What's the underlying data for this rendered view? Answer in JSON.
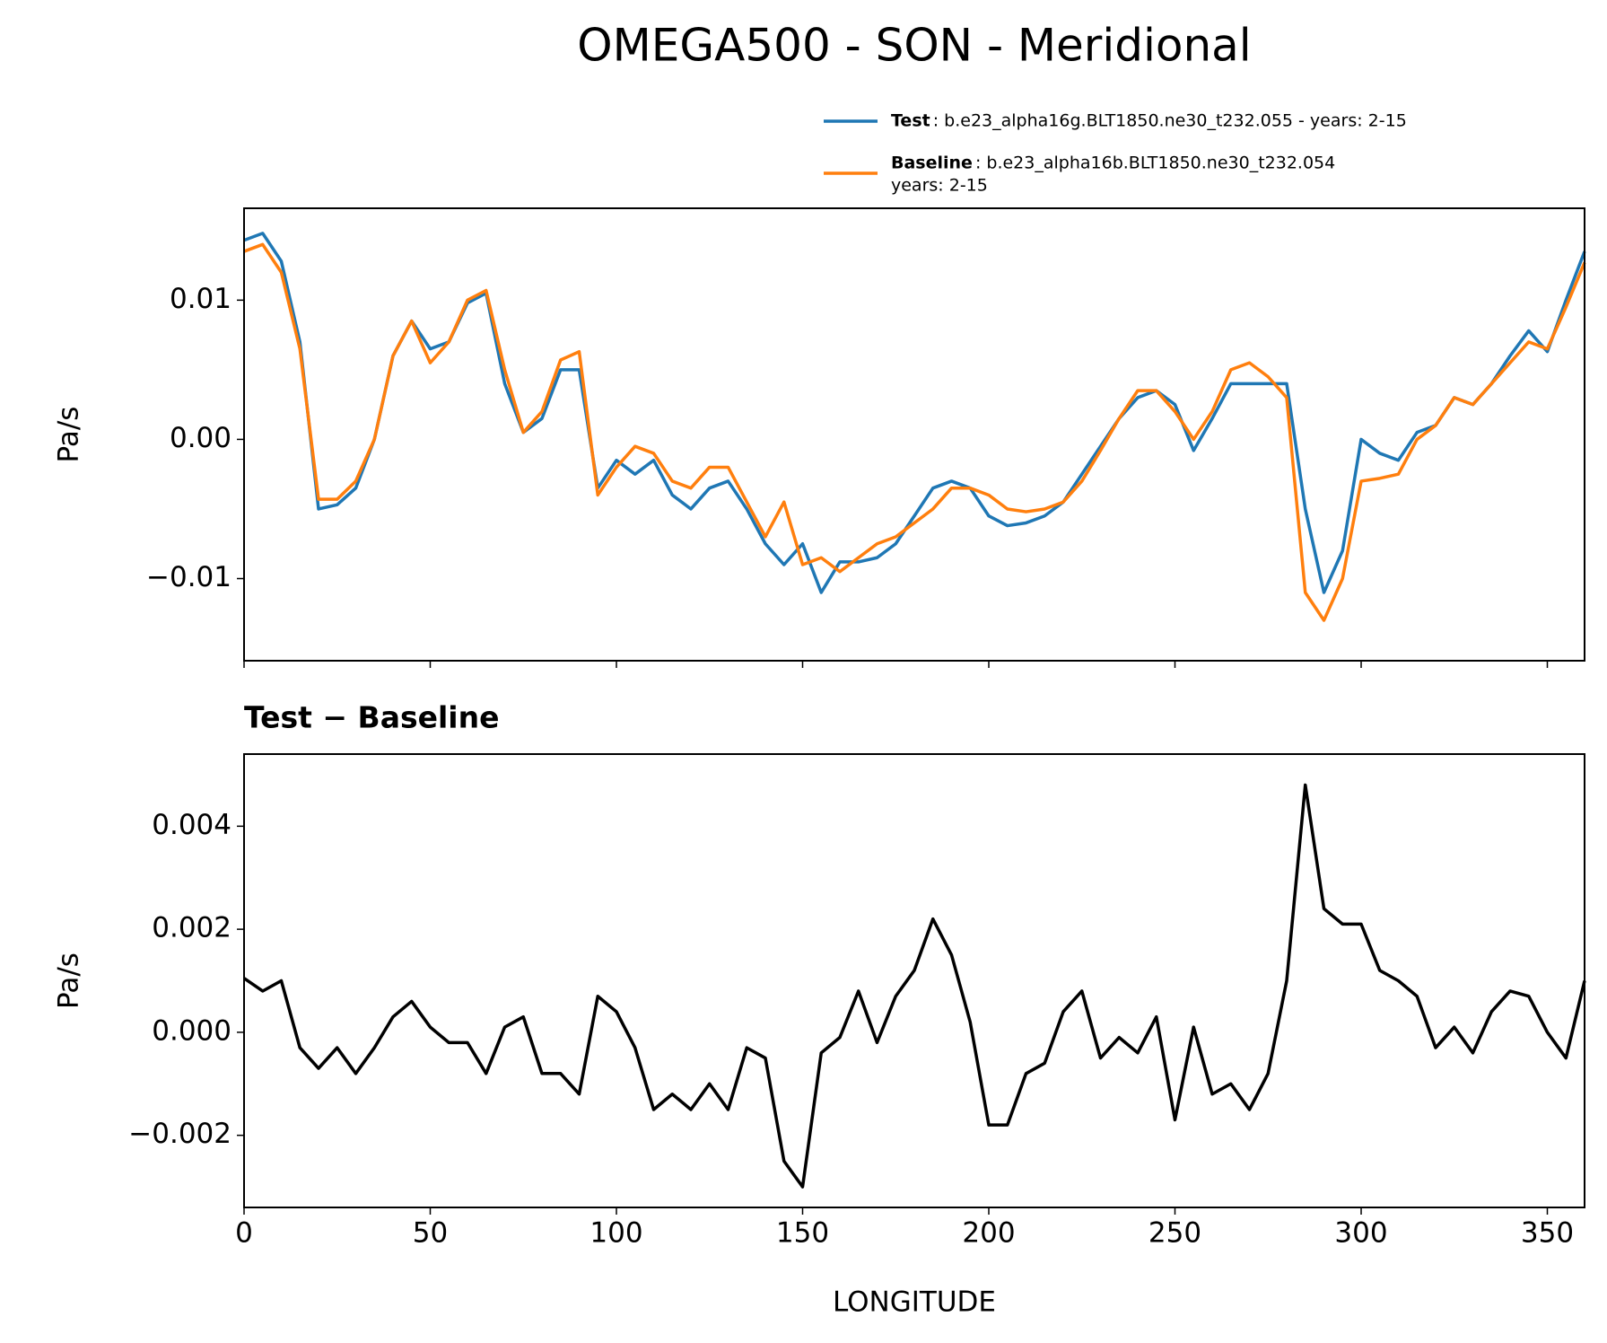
{
  "chart_data": [
    {
      "type": "line",
      "title": "OMEGA500 - SON - Meridional",
      "ylabel": "Pa/s",
      "x": [
        0,
        5,
        10,
        15,
        20,
        25,
        30,
        35,
        40,
        45,
        50,
        55,
        60,
        65,
        70,
        75,
        80,
        85,
        90,
        95,
        100,
        105,
        110,
        115,
        120,
        125,
        130,
        135,
        140,
        145,
        150,
        155,
        160,
        165,
        170,
        175,
        180,
        185,
        190,
        195,
        200,
        205,
        210,
        215,
        220,
        225,
        230,
        235,
        240,
        245,
        250,
        255,
        260,
        265,
        270,
        275,
        280,
        285,
        290,
        295,
        300,
        305,
        310,
        315,
        320,
        325,
        330,
        335,
        340,
        345,
        350,
        355,
        360
      ],
      "series": [
        {
          "name": "Test",
          "description": [
            ": b.e23_alpha16g.BLT1850.ne30_t232.055 - years: 2-15"
          ],
          "color": "#1f77b4",
          "values": [
            0.0143,
            0.0148,
            0.0128,
            0.007,
            -0.005,
            -0.0047,
            -0.0035,
            0.0,
            0.006,
            0.0085,
            0.0065,
            0.007,
            0.0098,
            0.0105,
            0.004,
            0.0005,
            0.0015,
            0.005,
            0.005,
            -0.0035,
            -0.0015,
            -0.0025,
            -0.0015,
            -0.004,
            -0.005,
            -0.0035,
            -0.003,
            -0.005,
            -0.0075,
            -0.009,
            -0.0075,
            -0.011,
            -0.0088,
            -0.0088,
            -0.0085,
            -0.0075,
            -0.0055,
            -0.0035,
            -0.003,
            -0.0035,
            -0.0055,
            -0.0062,
            -0.006,
            -0.0055,
            -0.0045,
            -0.0025,
            -0.0005,
            0.0015,
            0.003,
            0.0035,
            0.0025,
            -0.0008,
            0.0015,
            0.004,
            0.004,
            0.004,
            0.004,
            -0.005,
            -0.011,
            -0.008,
            0.0,
            -0.001,
            -0.0015,
            0.0005,
            0.001,
            0.003,
            0.0025,
            0.004,
            0.006,
            0.0078,
            0.0063,
            0.01,
            0.0135
          ]
        },
        {
          "name": "Baseline",
          "description": [
            ": b.e23_alpha16b.BLT1850.ne30_t232.054",
            "years: 2-15"
          ],
          "color": "#ff7f0e",
          "values": [
            0.0135,
            0.014,
            0.012,
            0.0065,
            -0.0043,
            -0.0043,
            -0.003,
            0.0,
            0.006,
            0.0085,
            0.0055,
            0.007,
            0.01,
            0.0107,
            0.005,
            0.0005,
            0.002,
            0.0057,
            0.0063,
            -0.004,
            -0.002,
            -0.0005,
            -0.001,
            -0.003,
            -0.0035,
            -0.002,
            -0.002,
            -0.0045,
            -0.007,
            -0.0045,
            -0.009,
            -0.0085,
            -0.0095,
            -0.0085,
            -0.0075,
            -0.007,
            -0.006,
            -0.005,
            -0.0035,
            -0.0035,
            -0.004,
            -0.005,
            -0.0052,
            -0.005,
            -0.0045,
            -0.003,
            -0.0008,
            0.0015,
            0.0035,
            0.0035,
            0.002,
            0.0,
            0.002,
            0.005,
            0.0055,
            0.0045,
            0.003,
            -0.011,
            -0.013,
            -0.01,
            -0.003,
            -0.0028,
            -0.0025,
            0.0,
            0.001,
            0.003,
            0.0025,
            0.004,
            0.0055,
            0.007,
            0.0065,
            0.0095,
            0.0127
          ]
        }
      ],
      "xlim": [
        0,
        360
      ],
      "xticks": [
        0,
        50,
        100,
        150,
        200,
        250,
        300,
        350
      ],
      "show_xtick_labels": false,
      "ylim": [
        -0.0159,
        0.0166
      ],
      "yticks": [
        0.01,
        {
          "value": 0,
          "label": "0.00"
        },
        {
          "value": -0.01,
          "label": "−0.01"
        }
      ]
    },
    {
      "type": "line",
      "title": "Test − Baseline",
      "ylabel": "Pa/s",
      "xlabel": "LONGITUDE",
      "color": "#000000",
      "x": [
        0,
        5,
        10,
        15,
        20,
        25,
        30,
        35,
        40,
        45,
        50,
        55,
        60,
        65,
        70,
        75,
        80,
        85,
        90,
        95,
        100,
        105,
        110,
        115,
        120,
        125,
        130,
        135,
        140,
        145,
        150,
        155,
        160,
        165,
        170,
        175,
        180,
        185,
        190,
        195,
        200,
        205,
        210,
        215,
        220,
        225,
        230,
        235,
        240,
        245,
        250,
        255,
        260,
        265,
        270,
        275,
        280,
        285,
        290,
        295,
        300,
        305,
        310,
        315,
        320,
        325,
        330,
        335,
        340,
        345,
        350,
        355,
        360
      ],
      "values": [
        0.00105,
        0.0008,
        0.001,
        -0.0003,
        -0.0007,
        -0.0003,
        -0.0008,
        -0.0003,
        0.0003,
        0.0006,
        0.0001,
        -0.0002,
        -0.0002,
        -0.0008,
        0.0001,
        0.0003,
        -0.0008,
        -0.0008,
        -0.0012,
        0.0007,
        0.0004,
        -0.0003,
        -0.0015,
        -0.0012,
        -0.0015,
        -0.001,
        -0.0015,
        -0.0003,
        -0.0005,
        -0.0025,
        -0.003,
        -0.0004,
        -0.0001,
        0.0008,
        -0.0002,
        0.0007,
        0.0012,
        0.0022,
        0.0015,
        0.0002,
        -0.0018,
        -0.0018,
        -0.0008,
        -0.0006,
        0.0004,
        0.0008,
        -0.0005,
        -0.0001,
        -0.0004,
        0.0003,
        -0.0017,
        0.0001,
        -0.0012,
        -0.001,
        -0.0015,
        -0.0008,
        0.001,
        0.0048,
        0.0024,
        0.0021,
        0.0021,
        0.0012,
        0.001,
        0.0007,
        -0.0003,
        0.0001,
        -0.0004,
        0.0004,
        0.0008,
        0.0007,
        0.0,
        -0.0005,
        0.001
      ],
      "xlim": [
        0,
        360
      ],
      "xticks": [
        0,
        50,
        100,
        150,
        200,
        250,
        300,
        350
      ],
      "show_xtick_labels": true,
      "ylim": [
        -0.0034,
        0.0054
      ],
      "yticks": [
        0.004,
        0.002,
        {
          "value": 0,
          "label": "0.000"
        },
        {
          "value": -0.002,
          "label": "−0.002"
        }
      ]
    }
  ]
}
